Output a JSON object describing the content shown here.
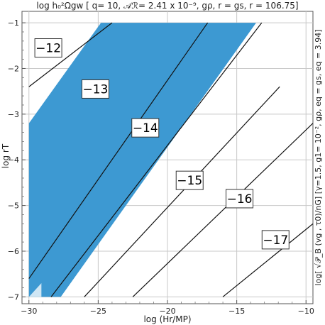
{
  "chart_data": {
    "type": "contour",
    "title": "log h₀²Ωgw [ q= 10, 𝒜ℛ= 2.41 x 10⁻⁹, gρ, r = gs, r = 106.75]",
    "xlabel": "log (Hr/MP)",
    "ylabel": "log rT",
    "right_label": "log[ √𝒫_B (vg , τ0)/nG] [γ=1.5, g1= 10⁻², gρ, eq = gs, eq = 3.94]",
    "xlim": [
      -30.5,
      -9.5
    ],
    "ylim": [
      -7.15,
      -0.75
    ],
    "xticks": [
      -30,
      -25,
      -20,
      -15,
      -10
    ],
    "xtick_labels": [
      "−30",
      "−25",
      "−20",
      "−15",
      "−10"
    ],
    "yticks": [
      -7,
      -6,
      -5,
      -4,
      -3,
      -2,
      -1
    ],
    "ytick_labels": [
      "−7",
      "−6",
      "−5",
      "−4",
      "−3",
      "−2",
      "−1"
    ],
    "grid": true,
    "contours": [
      {
        "level": -12,
        "label": "−12",
        "x": [
          -30,
          -24
        ],
        "y": [
          -2.4,
          -1.0
        ],
        "label_at": [
          -28.6,
          -1.55
        ]
      },
      {
        "level": -13,
        "label": "−13",
        "x": [
          -30,
          -17.1
        ],
        "y": [
          -6.6,
          -1.0
        ],
        "label_at": [
          -25.2,
          -2.45
        ]
      },
      {
        "level": -14,
        "label": "−14",
        "x": [
          -28.4,
          -13.2
        ],
        "y": [
          -7.0,
          -1.0
        ],
        "label_at": [
          -21.6,
          -3.3
        ]
      },
      {
        "level": -15,
        "label": "−15",
        "x": [
          -26.0,
          -11.9
        ],
        "y": [
          -7.0,
          -2.4
        ],
        "label_at": [
          -18.4,
          -4.45
        ]
      },
      {
        "level": -16,
        "label": "−16",
        "x": [
          -22.5,
          -9.5
        ],
        "y": [
          -7.0,
          -3.2
        ],
        "label_at": [
          -14.8,
          -4.85
        ]
      },
      {
        "level": -17,
        "label": "−17",
        "x": [
          -16.0,
          -9.5
        ],
        "y": [
          -7.0,
          -5.4
        ],
        "label_at": [
          -12.2,
          -5.75
        ]
      }
    ],
    "shaded_region": {
      "color": "#3d99d2",
      "x": [
        -30,
        -24.8,
        -13.6,
        -27.7,
        -30
      ],
      "y": [
        -3.2,
        -1.0,
        -1.0,
        -7.0,
        -7.0
      ]
    },
    "light_region": {
      "color": "#cfe6f4",
      "x": [
        -30,
        -29.1,
        -29.1
      ],
      "y": [
        -7.0,
        -6.7,
        -7.0
      ]
    }
  }
}
